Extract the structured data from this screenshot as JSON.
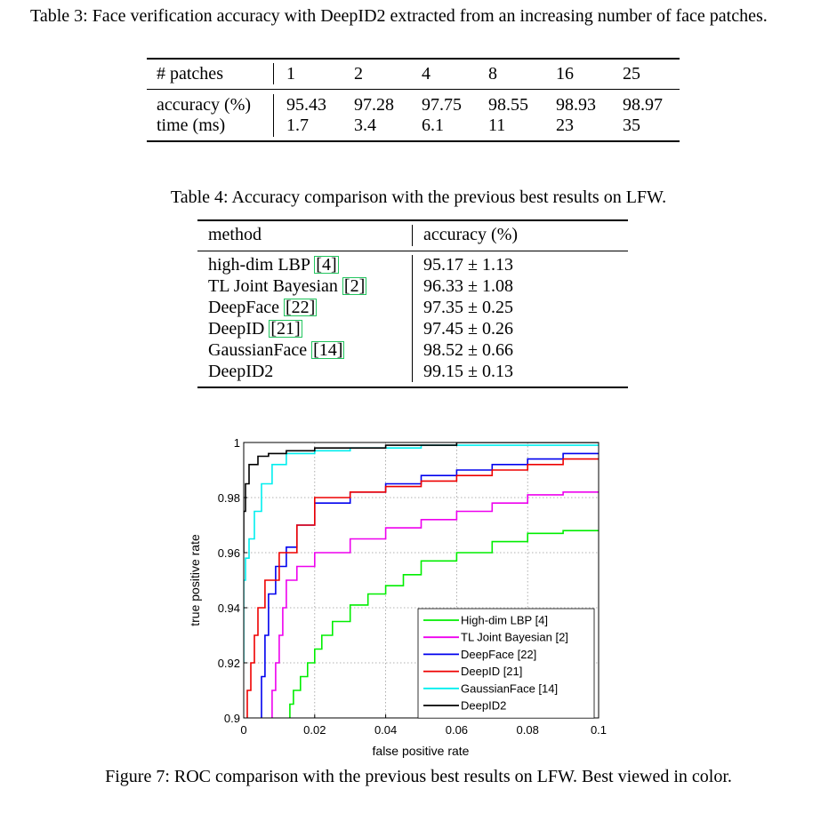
{
  "table3": {
    "caption": "Table 3:  Face verification accuracy with DeepID2 extracted from an increasing number of face patches.",
    "row_header_label": "# patches",
    "patches": [
      "1",
      "2",
      "4",
      "8",
      "16",
      "25"
    ],
    "rows": [
      {
        "label": "accuracy (%)",
        "values": [
          "95.43",
          "97.28",
          "97.75",
          "98.55",
          "98.93",
          "98.97"
        ]
      },
      {
        "label": "time (ms)",
        "values": [
          "1.7",
          "3.4",
          "6.1",
          "11",
          "23",
          "35"
        ]
      }
    ]
  },
  "table4": {
    "caption": "Table 4:  Accuracy comparison with the previous best results on LFW.",
    "col_method": "method",
    "col_accuracy": "accuracy (%)",
    "rows": [
      {
        "name": "high-dim LBP",
        "cite": "[4]",
        "accuracy": "95.17 ± 1.13"
      },
      {
        "name": "TL Joint Bayesian",
        "cite": "[2]",
        "accuracy": "96.33 ± 1.08"
      },
      {
        "name": "DeepFace",
        "cite": "[22]",
        "accuracy": "97.35 ± 0.25"
      },
      {
        "name": "DeepID",
        "cite": "[21]",
        "accuracy": "97.45 ± 0.26"
      },
      {
        "name": "GaussianFace",
        "cite": "[14]",
        "accuracy": "98.52 ± 0.66"
      },
      {
        "name": "DeepID2",
        "cite": "",
        "accuracy": "99.15 ± 0.13"
      }
    ]
  },
  "figure7": {
    "caption": "Figure 7:  ROC comparison with the previous best results on LFW. Best viewed in color."
  },
  "chart_data": {
    "type": "line",
    "title": "",
    "xlabel": "false positive rate",
    "ylabel": "true positive rate",
    "xlim": [
      0,
      0.1
    ],
    "ylim": [
      0.9,
      1.0
    ],
    "xticks": [
      "0",
      "0.02",
      "0.04",
      "0.06",
      "0.08",
      "0.1"
    ],
    "yticks": [
      "0.9",
      "0.92",
      "0.94",
      "0.96",
      "0.98",
      "1"
    ],
    "grid": true,
    "legend_position": "bottom-right",
    "series": [
      {
        "name": "High-dim LBP [4]",
        "color": "#00ee00",
        "points": [
          [
            0.013,
            0.9
          ],
          [
            0.014,
            0.905
          ],
          [
            0.016,
            0.91
          ],
          [
            0.018,
            0.915
          ],
          [
            0.02,
            0.92
          ],
          [
            0.022,
            0.925
          ],
          [
            0.025,
            0.93
          ],
          [
            0.03,
            0.935
          ],
          [
            0.035,
            0.941
          ],
          [
            0.04,
            0.945
          ],
          [
            0.045,
            0.948
          ],
          [
            0.05,
            0.952
          ],
          [
            0.06,
            0.957
          ],
          [
            0.07,
            0.96
          ],
          [
            0.08,
            0.964
          ],
          [
            0.09,
            0.967
          ],
          [
            0.1,
            0.968
          ]
        ]
      },
      {
        "name": "TL Joint Bayesian    [2]",
        "color": "#ee00ee",
        "points": [
          [
            0.008,
            0.9
          ],
          [
            0.009,
            0.91
          ],
          [
            0.01,
            0.92
          ],
          [
            0.011,
            0.93
          ],
          [
            0.012,
            0.94
          ],
          [
            0.015,
            0.95
          ],
          [
            0.02,
            0.955
          ],
          [
            0.03,
            0.96
          ],
          [
            0.04,
            0.965
          ],
          [
            0.05,
            0.969
          ],
          [
            0.06,
            0.972
          ],
          [
            0.07,
            0.975
          ],
          [
            0.08,
            0.978
          ],
          [
            0.09,
            0.981
          ],
          [
            0.1,
            0.982
          ]
        ]
      },
      {
        "name": "DeepFace [22]",
        "color": "#0000ee",
        "points": [
          [
            0.005,
            0.9
          ],
          [
            0.006,
            0.915
          ],
          [
            0.007,
            0.93
          ],
          [
            0.009,
            0.945
          ],
          [
            0.012,
            0.955
          ],
          [
            0.015,
            0.962
          ],
          [
            0.02,
            0.97
          ],
          [
            0.03,
            0.978
          ],
          [
            0.04,
            0.982
          ],
          [
            0.05,
            0.985
          ],
          [
            0.06,
            0.988
          ],
          [
            0.07,
            0.99
          ],
          [
            0.08,
            0.992
          ],
          [
            0.09,
            0.994
          ],
          [
            0.1,
            0.996
          ]
        ]
      },
      {
        "name": "DeepID [21]",
        "color": "#ee0000",
        "points": [
          [
            0.001,
            0.9
          ],
          [
            0.002,
            0.91
          ],
          [
            0.003,
            0.92
          ],
          [
            0.004,
            0.93
          ],
          [
            0.006,
            0.94
          ],
          [
            0.01,
            0.95
          ],
          [
            0.015,
            0.96
          ],
          [
            0.02,
            0.97
          ],
          [
            0.03,
            0.98
          ],
          [
            0.04,
            0.982
          ],
          [
            0.05,
            0.984
          ],
          [
            0.06,
            0.986
          ],
          [
            0.07,
            0.988
          ],
          [
            0.08,
            0.99
          ],
          [
            0.09,
            0.992
          ],
          [
            0.1,
            0.994
          ]
        ]
      },
      {
        "name": "GaussianFace [14]",
        "color": "#00eeee",
        "points": [
          [
            0.0,
            0.92
          ],
          [
            0.0005,
            0.95
          ],
          [
            0.0015,
            0.958
          ],
          [
            0.003,
            0.965
          ],
          [
            0.005,
            0.975
          ],
          [
            0.008,
            0.985
          ],
          [
            0.012,
            0.992
          ],
          [
            0.02,
            0.996
          ],
          [
            0.03,
            0.997
          ],
          [
            0.05,
            0.998
          ],
          [
            0.08,
            0.999
          ],
          [
            0.1,
            0.999
          ]
        ]
      },
      {
        "name": "DeepID2",
        "color": "#000000",
        "points": [
          [
            0.0,
            0.96
          ],
          [
            0.0005,
            0.975
          ],
          [
            0.0015,
            0.985
          ],
          [
            0.004,
            0.992
          ],
          [
            0.007,
            0.995
          ],
          [
            0.012,
            0.996
          ],
          [
            0.02,
            0.997
          ],
          [
            0.04,
            0.998
          ],
          [
            0.06,
            0.999
          ],
          [
            0.1,
            1.0
          ]
        ]
      }
    ]
  }
}
